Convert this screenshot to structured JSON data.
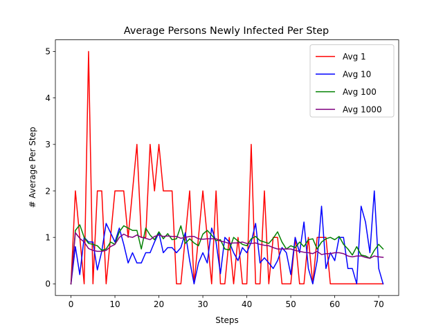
{
  "chart_data": {
    "type": "line",
    "title": "Average Persons Newly Infected Per Step",
    "xlabel": "Steps",
    "ylabel": "# Average Per Step",
    "xlim": [
      -3.55,
      74.55
    ],
    "ylim": [
      -0.25,
      5.25
    ],
    "xticks": [
      0,
      10,
      20,
      30,
      40,
      50,
      60,
      70
    ],
    "yticks": [
      0,
      1,
      2,
      3,
      4,
      5
    ],
    "grid": false,
    "legend_position": "top-right",
    "x": [
      0,
      1,
      2,
      3,
      4,
      5,
      6,
      7,
      8,
      9,
      10,
      11,
      12,
      13,
      14,
      15,
      16,
      17,
      18,
      19,
      20,
      21,
      22,
      23,
      24,
      25,
      26,
      27,
      28,
      29,
      30,
      31,
      32,
      33,
      34,
      35,
      36,
      37,
      38,
      39,
      40,
      41,
      42,
      43,
      44,
      45,
      46,
      47,
      48,
      49,
      50,
      51,
      52,
      53,
      54,
      55,
      56,
      57,
      58,
      59,
      60,
      61,
      62,
      63,
      64,
      65,
      66,
      67,
      68,
      69,
      70,
      71
    ],
    "series": [
      {
        "name": "Avg 1",
        "color": "#ff0000",
        "values": [
          0,
          2,
          1,
          0,
          5,
          0,
          2,
          2,
          0,
          1,
          2,
          2,
          2,
          1,
          2,
          3,
          1,
          1,
          3,
          2,
          3,
          2,
          2,
          2,
          0,
          0,
          1,
          2,
          0,
          1,
          2,
          1,
          0,
          2,
          0,
          0,
          1,
          0,
          1,
          0,
          0,
          3,
          0,
          0,
          2,
          0,
          1,
          1,
          0,
          0,
          0,
          1,
          0,
          0,
          1,
          0,
          1,
          1,
          1,
          0,
          0,
          0,
          0,
          0,
          0,
          0,
          0,
          0,
          0,
          0,
          0,
          0
        ]
      },
      {
        "name": "Avg 10",
        "color": "#0000ff",
        "values": [
          0,
          0.8,
          0.2,
          1.0,
          0.9,
          0.9,
          0.3,
          0.7,
          1.3,
          1.1,
          0.9,
          1.2,
          0.85,
          0.45,
          0.67,
          0.45,
          0.45,
          0.67,
          0.67,
          0.9,
          1.1,
          0.67,
          0.78,
          0.78,
          0.67,
          0.78,
          1.1,
          0.5,
          0,
          0.45,
          0.67,
          0.45,
          1.2,
          0.9,
          0.22,
          1.0,
          0.9,
          0.67,
          0.5,
          0.78,
          0.67,
          0.9,
          1.3,
          0.45,
          0.56,
          0.45,
          0.33,
          0.5,
          0.78,
          0.67,
          0.2,
          1.0,
          0.67,
          1.33,
          0.33,
          0,
          0.5,
          1.67,
          0.33,
          0.67,
          0.5,
          1.0,
          1.0,
          0.33,
          0.33,
          0,
          1.67,
          1.33,
          0.67,
          2.0,
          0.33,
          0
        ]
      },
      {
        "name": "Avg 100",
        "color": "#008000",
        "values": [
          0,
          1.15,
          1.27,
          1.0,
          0.87,
          0.85,
          0.82,
          0.72,
          0.75,
          0.9,
          0.85,
          1.12,
          1.25,
          1.2,
          1.15,
          1.15,
          0.75,
          1.2,
          1.05,
          0.95,
          1.12,
          0.97,
          1.08,
          0.95,
          0.97,
          1.25,
          0.87,
          0.97,
          0.88,
          0.82,
          1.07,
          1.15,
          1.05,
          0.93,
          0.95,
          0.75,
          0.73,
          1.0,
          0.92,
          0.85,
          0.82,
          0.97,
          1.02,
          0.93,
          0.9,
          0.87,
          0.98,
          1.12,
          0.9,
          0.75,
          0.82,
          0.78,
          0.9,
          0.8,
          0.95,
          0.97,
          0.75,
          0.9,
          0.97,
          1.0,
          0.95,
          1.02,
          0.85,
          0.75,
          0.62,
          0.8,
          0.62,
          0.6,
          0.55,
          0.72,
          0.85,
          0.75
        ]
      },
      {
        "name": "Avg 1000",
        "color": "#800080",
        "values": [
          0,
          1.1,
          0.98,
          0.9,
          0.76,
          0.72,
          0.7,
          0.7,
          0.72,
          0.8,
          0.85,
          1.0,
          1.07,
          1.02,
          1.0,
          1.05,
          1.0,
          0.98,
          0.95,
          1.02,
          1.05,
          1.02,
          1.03,
          1.02,
          1.02,
          0.98,
          1.0,
          1.02,
          1.02,
          0.97,
          0.96,
          0.97,
          0.97,
          0.97,
          0.92,
          0.9,
          0.87,
          0.88,
          0.88,
          0.9,
          0.87,
          0.87,
          0.88,
          0.85,
          0.83,
          0.82,
          0.78,
          0.75,
          0.75,
          0.75,
          0.75,
          0.72,
          0.7,
          0.68,
          0.67,
          0.65,
          0.7,
          0.63,
          0.65,
          0.65,
          0.67,
          0.67,
          0.65,
          0.6,
          0.58,
          0.6,
          0.6,
          0.57,
          0.55,
          0.6,
          0.58,
          0.57
        ]
      }
    ]
  }
}
